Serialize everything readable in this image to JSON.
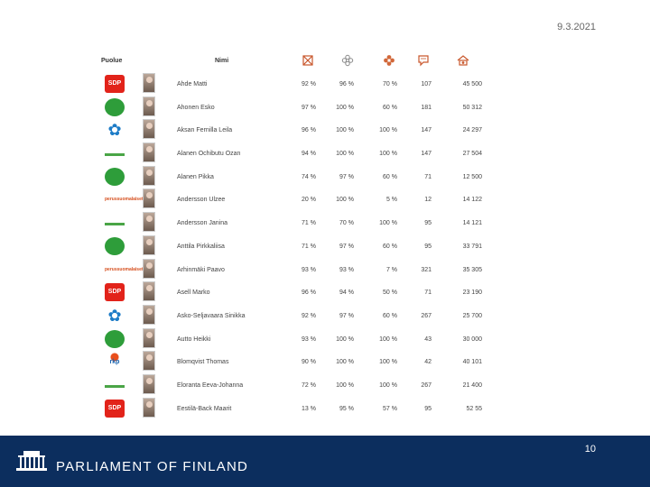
{
  "date": "9.3.2021",
  "table": {
    "party_header": "Puolue",
    "name_header": "Nimi",
    "icons": [
      "absence-icon",
      "flower-outline-icon",
      "flower-icon",
      "speech-icon",
      "house-icon"
    ],
    "rows": [
      {
        "party": "sdp",
        "party_label": "SDP",
        "name": "Ahde Matti",
        "v1": "92 %",
        "v2": "96 %",
        "v3": "70 %",
        "v4": "107",
        "v5": "45 500"
      },
      {
        "party": "keskusta",
        "party_label": "",
        "name": "Ahonen Esko",
        "v1": "97 %",
        "v2": "100 %",
        "v3": "60 %",
        "v4": "181",
        "v5": "50 312"
      },
      {
        "party": "kok",
        "party_label": "",
        "name": "Aksan Fernilla Leila",
        "v1": "96 %",
        "v2": "100 %",
        "v3": "100 %",
        "v4": "147",
        "v5": "24 297"
      },
      {
        "party": "vihr",
        "party_label": "",
        "name": "Alanen Ochibutu Ozan",
        "v1": "94 %",
        "v2": "100 %",
        "v3": "100 %",
        "v4": "147",
        "v5": "27 504"
      },
      {
        "party": "keskusta",
        "party_label": "",
        "name": "Alanen Pikka",
        "v1": "74 %",
        "v2": "97 %",
        "v3": "60 %",
        "v4": "71",
        "v5": "12 500"
      },
      {
        "party": "ps",
        "party_label": "perussuomalaiset",
        "name": "Andersson Ulzee",
        "v1": "20 %",
        "v2": "100 %",
        "v3": "5 %",
        "v4": "12",
        "v5": "14 122"
      },
      {
        "party": "vihr",
        "party_label": "",
        "name": "Andersson Janina",
        "v1": "71 %",
        "v2": "70 %",
        "v3": "100 %",
        "v4": "95",
        "v5": "14 121"
      },
      {
        "party": "keskusta",
        "party_label": "",
        "name": "Anttila Pirkkaliisa",
        "v1": "71 %",
        "v2": "97 %",
        "v3": "60 %",
        "v4": "95",
        "v5": "33 791"
      },
      {
        "party": "ps",
        "party_label": "perussuomalaiset",
        "name": "Arhinmäki Paavo",
        "v1": "93 %",
        "v2": "93 %",
        "v3": "7 %",
        "v4": "321",
        "v5": "35 305"
      },
      {
        "party": "sdp",
        "party_label": "SDP",
        "name": "Asell Marko",
        "v1": "96 %",
        "v2": "94 %",
        "v3": "50 %",
        "v4": "71",
        "v5": "23 190"
      },
      {
        "party": "kok",
        "party_label": "",
        "name": "Asko-Seljavaara Sinikka",
        "v1": "92 %",
        "v2": "97 %",
        "v3": "60 %",
        "v4": "267",
        "v5": "25 700"
      },
      {
        "party": "keskusta",
        "party_label": "",
        "name": "Autto Heikki",
        "v1": "93 %",
        "v2": "100 %",
        "v3": "100 %",
        "v4": "43",
        "v5": "30 000"
      },
      {
        "party": "rkp",
        "party_label": "rkp",
        "name": "Blomqvist Thomas",
        "v1": "90 %",
        "v2": "100 %",
        "v3": "100 %",
        "v4": "42",
        "v5": "40 101"
      },
      {
        "party": "vihr",
        "party_label": "",
        "name": "Eloranta Eeva-Johanna",
        "v1": "72 %",
        "v2": "100 %",
        "v3": "100 %",
        "v4": "267",
        "v5": "21 400"
      },
      {
        "party": "sdp",
        "party_label": "SDP",
        "name": "Eestilä-Back Maarit",
        "v1": "13 %",
        "v2": "95 %",
        "v3": "57 %",
        "v4": "95",
        "v5": "52 55"
      }
    ]
  },
  "footer": {
    "brand": "PARLIAMENT OF FINLAND",
    "page_number": "10"
  }
}
